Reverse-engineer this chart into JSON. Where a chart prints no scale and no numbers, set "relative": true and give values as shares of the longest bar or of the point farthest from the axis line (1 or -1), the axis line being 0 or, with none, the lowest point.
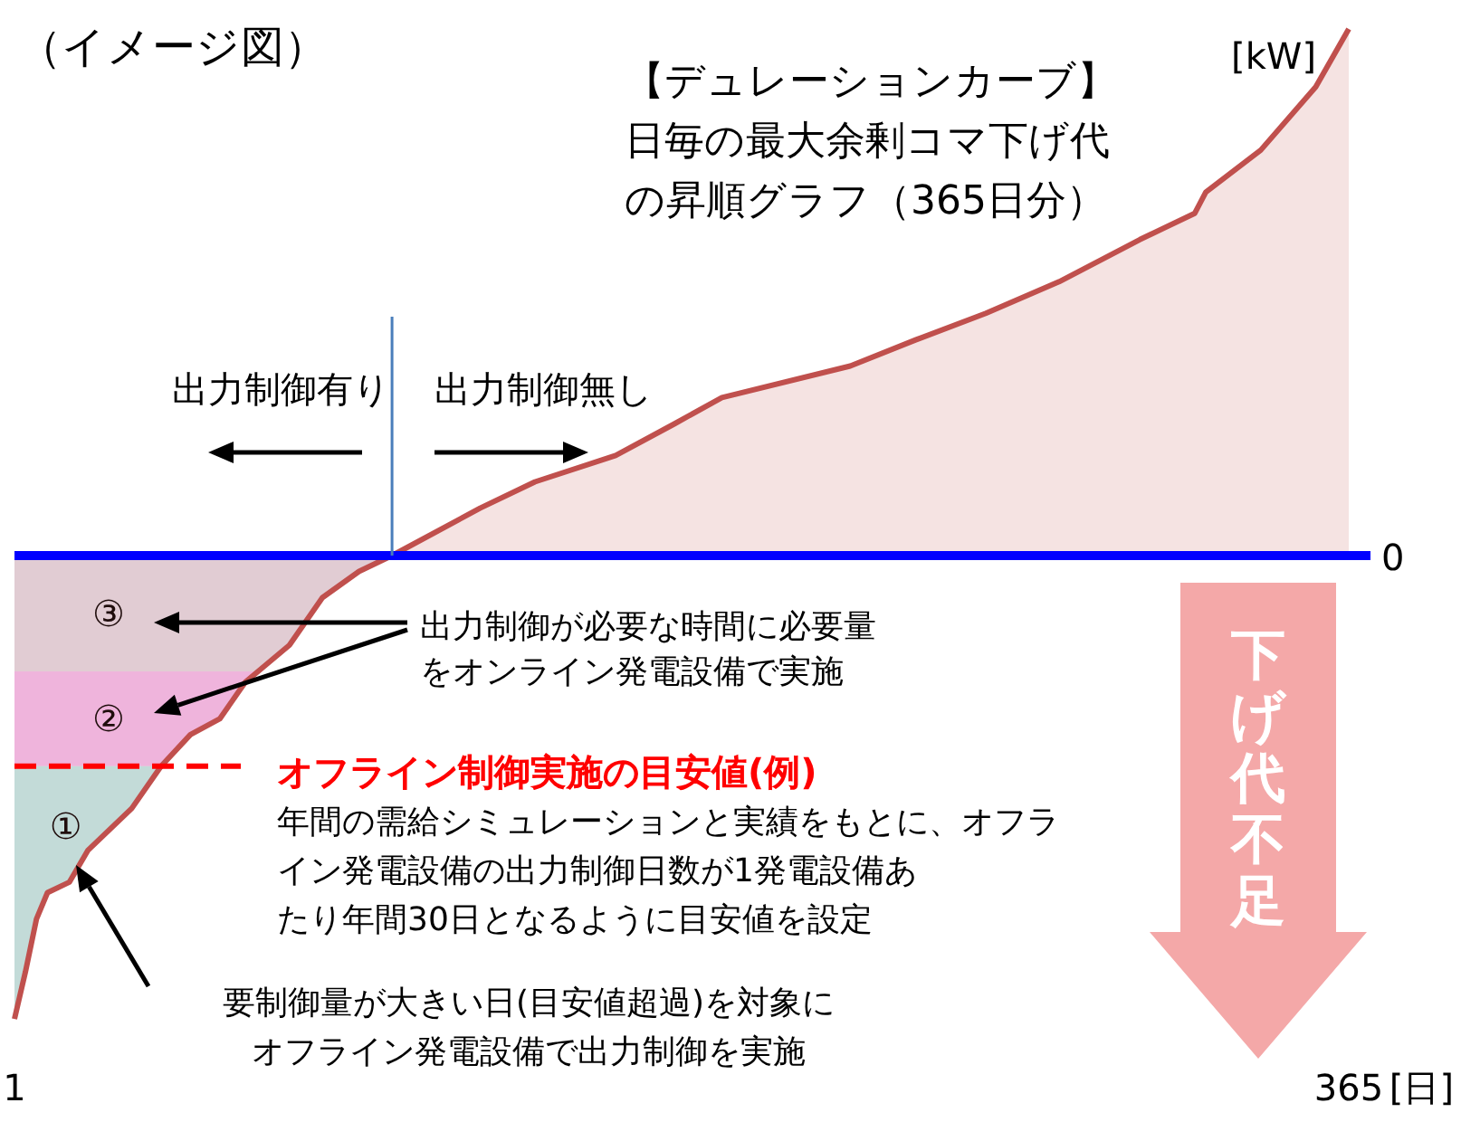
{
  "chart_data": {
    "type": "area",
    "title": "（イメージ図）",
    "xlabel": "[日]",
    "ylabel": "[kW]",
    "relative": true,
    "xlim": [
      1,
      365
    ],
    "xticks": [
      1,
      365
    ],
    "x": [
      1,
      4,
      7,
      10,
      16,
      21,
      33,
      41,
      49,
      57,
      64,
      76,
      85,
      95,
      104,
      128,
      143,
      165,
      181,
      194,
      229,
      247,
      266,
      286,
      308,
      323,
      326,
      341,
      356,
      365
    ],
    "series": [
      {
        "color": "#c0504d",
        "values": [
          -0.88,
          -0.79,
          -0.69,
          -0.64,
          -0.62,
          -0.56,
          -0.48,
          -0.4,
          -0.34,
          -0.31,
          -0.24,
          -0.17,
          -0.08,
          -0.03,
          0,
          0.09,
          0.14,
          0.19,
          0.25,
          0.3,
          0.36,
          0.41,
          0.46,
          0.52,
          0.6,
          0.65,
          0.69,
          0.77,
          0.89,
          1
        ]
      }
    ],
    "bands": [
      {
        "axis": "y",
        "from": 0,
        "to": -0.22,
        "label": "③",
        "color": "#e8e4ee"
      },
      {
        "axis": "y",
        "from": -0.22,
        "to": -0.4,
        "label": "②",
        "color": "#f8c8f8"
      },
      {
        "axis": "y",
        "from": -0.4,
        "to": -0.88,
        "label": "①",
        "color": "#c4f6f4"
      }
    ],
    "ref_lines": [
      {
        "axis": "y",
        "value": 0,
        "label": "0",
        "color": "#0000ff",
        "line_style": "solid"
      },
      {
        "axis": "y",
        "value": -0.4,
        "label": "オフライン制御実施の目安値(例)",
        "color": "#ff0000",
        "line_style": "dashed"
      },
      {
        "axis": "x",
        "value": 104,
        "color": "#4a7ebb",
        "line_style": "solid"
      }
    ],
    "annotations": [
      "【デュレーションカーブ】日毎の最大余剰コマ下げ代の昇順グラフ（365日分）",
      "出力制御有り",
      "出力制御無し",
      "出力制御が必要な時間に必要量をオンライン発電設備で実施",
      "年間の需給シミュレーションと実績をもとに、オフライン発電設備の出力制御日数が1発電設備あたり年間30日となるように目安値を設定",
      "要制御量が大きい日(目安値超過)を対象にオフライン発電設備で出力制御を実施",
      "下げ代不足"
    ],
    "tick_labels": "x"
  }
}
